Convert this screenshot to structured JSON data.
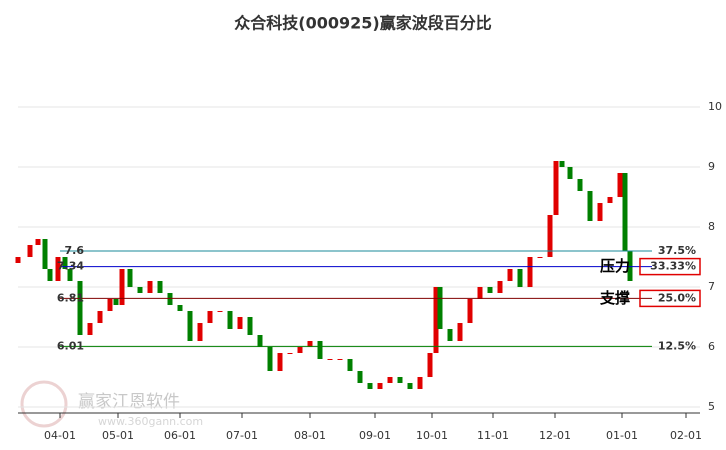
{
  "chart_data": {
    "type": "candlestick",
    "title": "众合科技(000925)赢家波段百分比",
    "x": [
      0,
      12,
      20,
      27,
      32,
      40,
      47,
      52,
      62,
      72,
      82,
      92,
      98,
      104,
      112,
      122,
      132,
      142,
      152,
      162,
      172,
      182,
      192,
      202,
      212,
      222,
      232,
      242,
      252,
      262,
      272,
      282,
      292,
      302,
      312,
      322,
      332,
      342,
      352,
      362,
      372,
      382,
      392,
      402,
      412,
      418,
      422,
      432,
      442,
      452,
      462,
      472,
      482,
      492,
      502,
      512,
      522,
      532,
      538,
      544,
      552,
      562,
      572,
      582,
      592,
      602,
      607,
      612
    ],
    "open": [
      7.4,
      7.5,
      7.7,
      7.8,
      7.3,
      7.1,
      7.5,
      7.3,
      7.1,
      6.2,
      6.4,
      6.6,
      6.8,
      6.7,
      7.3,
      7.0,
      6.9,
      7.1,
      6.9,
      6.7,
      6.6,
      6.1,
      6.4,
      6.6,
      6.6,
      6.3,
      6.5,
      6.2,
      6.0,
      5.6,
      5.9,
      5.9,
      6.0,
      6.1,
      5.8,
      5.8,
      5.8,
      5.6,
      5.4,
      5.3,
      5.4,
      5.5,
      5.4,
      5.3,
      5.5,
      5.9,
      7.0,
      6.3,
      6.1,
      6.4,
      6.8,
      7.0,
      6.9,
      7.1,
      7.3,
      7.0,
      7.5,
      7.5,
      8.2,
      9.1,
      9.0,
      8.8,
      8.6,
      8.1,
      8.4,
      8.5,
      8.9,
      7.6
    ],
    "close": [
      7.5,
      7.7,
      7.8,
      7.3,
      7.1,
      7.5,
      7.3,
      7.1,
      6.2,
      6.4,
      6.6,
      6.8,
      6.7,
      7.3,
      7.0,
      6.9,
      7.1,
      6.9,
      6.7,
      6.6,
      6.1,
      6.4,
      6.6,
      6.6,
      6.3,
      6.5,
      6.2,
      6.0,
      5.6,
      5.9,
      5.9,
      6.0,
      6.1,
      5.8,
      5.8,
      5.8,
      5.6,
      5.4,
      5.3,
      5.4,
      5.5,
      5.4,
      5.3,
      5.5,
      5.9,
      7.0,
      6.3,
      6.1,
      6.4,
      6.8,
      7.0,
      6.9,
      7.1,
      7.3,
      7.0,
      7.5,
      7.5,
      8.2,
      9.1,
      9.0,
      8.8,
      8.6,
      8.1,
      8.4,
      8.5,
      8.9,
      7.6,
      7.1
    ],
    "up_color": "#e00000",
    "down_color": "#008000",
    "xlim": [
      0,
      682
    ],
    "ylim": [
      4.9,
      11
    ],
    "xticks": [
      {
        "value": 42,
        "label": "04-01"
      },
      {
        "value": 100,
        "label": "05-01"
      },
      {
        "value": 162,
        "label": "06-01"
      },
      {
        "value": 224,
        "label": "07-01"
      },
      {
        "value": 292,
        "label": "08-01"
      },
      {
        "value": 357,
        "label": "09-01"
      },
      {
        "value": 414,
        "label": "10-01"
      },
      {
        "value": 475,
        "label": "11-01"
      },
      {
        "value": 537,
        "label": "12-01"
      },
      {
        "value": 604,
        "label": "01-01"
      },
      {
        "value": 668,
        "label": "02-01"
      }
    ],
    "yticks": [
      5,
      6,
      7,
      8,
      9,
      10
    ],
    "grid": true,
    "levels": [
      {
        "value": 7.6,
        "label": "37.5%",
        "color": "#1a8a9a"
      },
      {
        "value": 7.34,
        "label": "33.33%",
        "color": "#0000cc",
        "note": "压力"
      },
      {
        "value": 6.81,
        "label": "25.0%",
        "color": "#800000",
        "note": "支撑"
      },
      {
        "value": 6.01,
        "label": "12.5%",
        "color": "#008000"
      }
    ],
    "watermark": [
      "赢家江恩软件",
      "www.360gann.com"
    ]
  }
}
